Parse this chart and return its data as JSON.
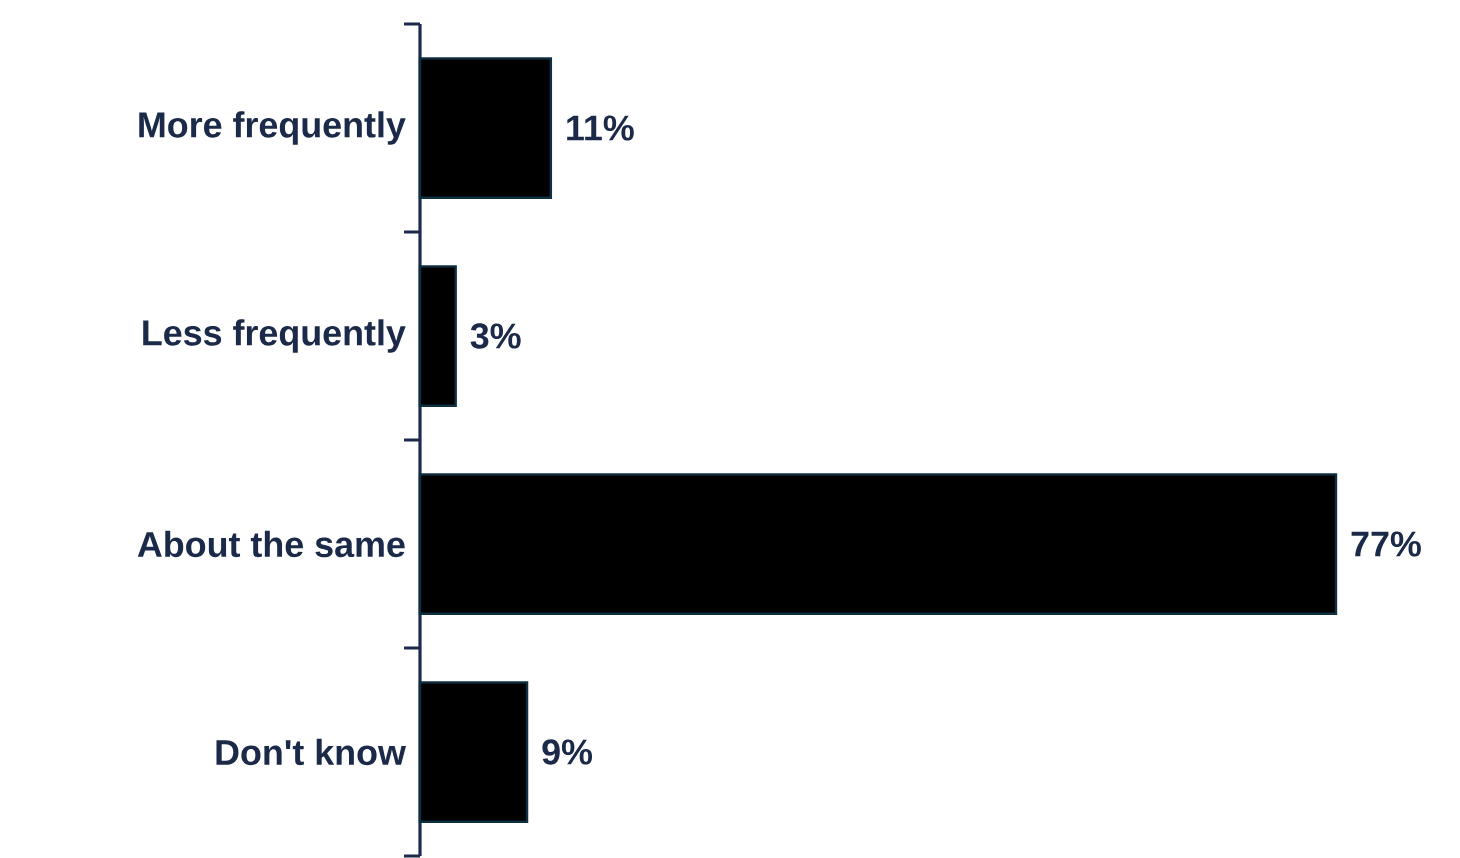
{
  "chart_data": {
    "type": "bar",
    "orientation": "horizontal",
    "tick_labels": "y",
    "categories": [
      "More frequently",
      "Less frequently",
      "About the same",
      "Don't know"
    ],
    "values": [
      11,
      3,
      77,
      9
    ],
    "value_labels": [
      "11%",
      "3%",
      "77%",
      "9%"
    ],
    "color": "#000000"
  }
}
